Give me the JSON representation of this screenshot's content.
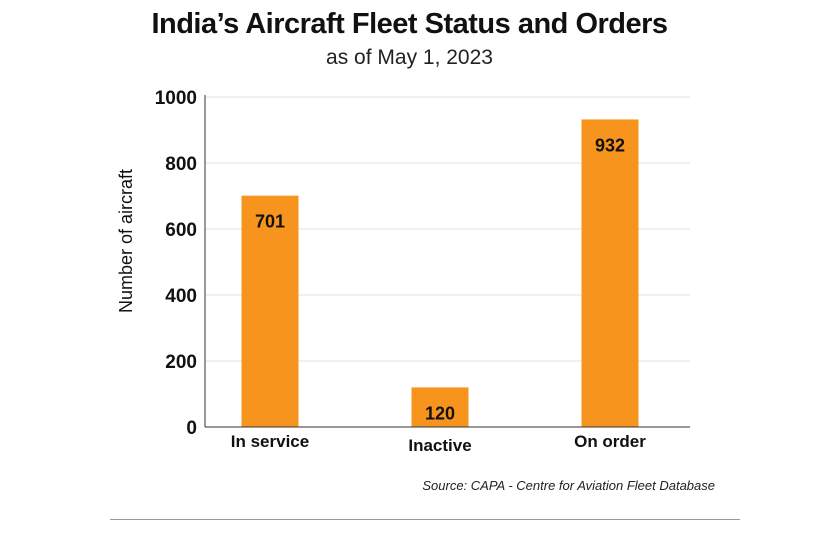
{
  "title": "India’s Aircraft Fleet Status and Orders",
  "subtitle": "as of May 1, 2023",
  "source": "Source: CAPA - Centre for Aviation Fleet Database",
  "colors": {
    "bar": "#F7941D",
    "grid": "#e2e2e2",
    "axis": "#333333",
    "text": "#111111"
  },
  "chart_data": {
    "type": "bar",
    "title": "India’s Aircraft Fleet Status and Orders",
    "subtitle": "as of May 1, 2023",
    "xlabel": "",
    "ylabel": "Number of aircraft",
    "categories": [
      "In service",
      "Inactive",
      "On order"
    ],
    "values": [
      701,
      120,
      932
    ],
    "data_labels": [
      "701",
      "120",
      "932"
    ],
    "ylim": [
      0,
      1000
    ],
    "yticks": [
      0,
      200,
      400,
      600,
      800,
      1000
    ],
    "ytick_labels": [
      "0",
      "200",
      "400",
      "600",
      "800",
      "1000"
    ],
    "grid": true,
    "legend": "none"
  }
}
